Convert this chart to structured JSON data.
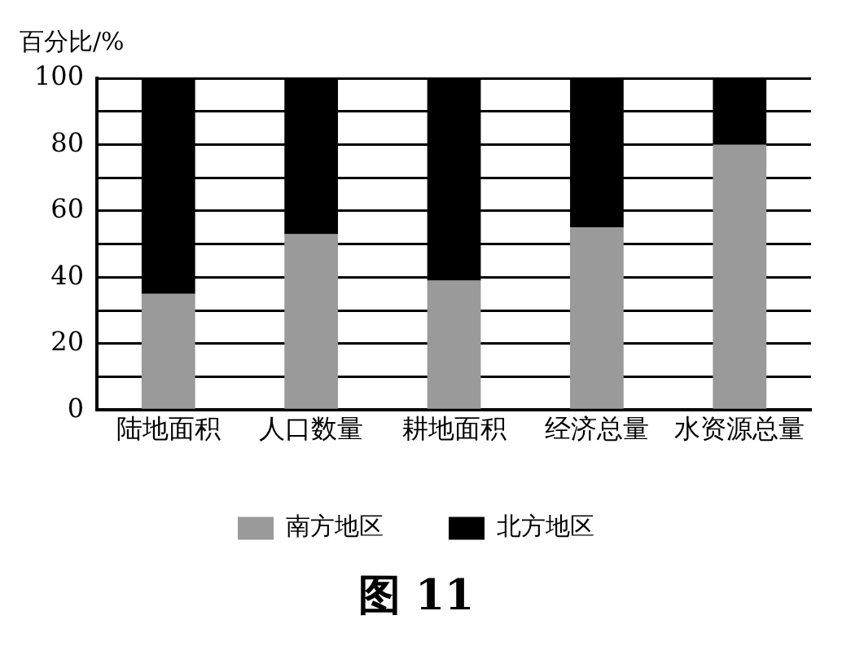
{
  "chart_data": {
    "type": "bar",
    "title": "图 11",
    "ylabel": "百分比/%",
    "categories": [
      "陆地面积",
      "人口数量",
      "耕地面积",
      "经济总量",
      "水资源总量"
    ],
    "series": [
      {
        "name": "南方地区",
        "color": "#9a9a9a",
        "values": [
          35,
          53,
          39,
          55,
          80
        ]
      },
      {
        "name": "北方地区",
        "color": "#000000",
        "values": [
          65,
          47,
          61,
          45,
          20
        ]
      }
    ],
    "stacked": true,
    "ylim": [
      0,
      100
    ],
    "yticks": [
      0,
      {
        "value": 10,
        "label": null
      },
      20,
      {
        "value": 30,
        "label": null
      },
      40,
      {
        "value": 50,
        "label": null
      },
      60,
      {
        "value": 70,
        "label": null
      },
      80,
      {
        "value": 90,
        "label": null
      },
      100
    ],
    "grid": "y",
    "legend": "bottom"
  }
}
